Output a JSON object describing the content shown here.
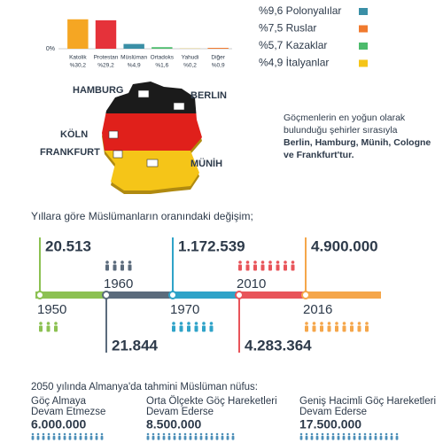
{
  "chart_data": {
    "type": "bar",
    "categories": [
      "Katolik",
      "Protestan",
      "Müslüman",
      "Ortadoks",
      "Yahudi",
      "Diğer"
    ],
    "values": [
      30.2,
      29.2,
      4.9,
      1.6,
      0.2,
      0.9
    ],
    "value_labels": [
      "%30,2",
      "%29,2",
      "%4,9",
      "%1,6",
      "%0,2",
      "%0,9"
    ],
    "colors": [
      "#f5a623",
      "#e5323a",
      "#3a8fa6",
      "#4cbb6c",
      "#f5c518",
      "#f07a2e"
    ],
    "ylim": [
      0,
      50
    ],
    "yticks": [
      {
        "value": 0,
        "label": "0%"
      }
    ]
  },
  "origins": [
    {
      "label": "%9,6 Polonyalılar",
      "color": "#3a8fa6"
    },
    {
      "label": "%7,5 Ruslar",
      "color": "#f07a2e"
    },
    {
      "label": "%5,7 Kazaklar",
      "color": "#4cbb6c"
    },
    {
      "label": "%4,9 İtalyanlar",
      "color": "#f5c518"
    }
  ],
  "map": {
    "cities": [
      "HAMBURG",
      "BERLIN",
      "KÖLN",
      "FRANKFURT",
      "MÜNİH"
    ],
    "note": "Göçmenlerin en yoğun olarak bulunduğu şehirler sırasıyla",
    "note_bold": "Berlin, Hamburg, Münih, Cologne ve Frankfurt'tur."
  },
  "timeline": {
    "title": "Yıllara göre Müslümanların oranındaki değişim;",
    "points": [
      {
        "year": "1950",
        "value": "20.513",
        "color": "#8cc152"
      },
      {
        "year": "1960",
        "value": "21.844",
        "color": "#5b6b7c"
      },
      {
        "year": "1970",
        "value": "1.172.539",
        "color": "#2fa3c8"
      },
      {
        "year": "2010",
        "value": "4.283.364",
        "color": "#e8545a"
      },
      {
        "year": "2016",
        "value": "4.900.000",
        "color": "#f5a64a"
      }
    ]
  },
  "projection": {
    "title": "2050 yılında Almanya'da tahmini Müslüman nüfus:",
    "scenarios": [
      {
        "lines": [
          "Göç Almaya",
          "Devam Etmezse"
        ],
        "value": "6.000.000"
      },
      {
        "lines": [
          "Orta Ölçekte Göç Hareketleri",
          "Devam Ederse"
        ],
        "value": "8.500.000"
      },
      {
        "lines": [
          "Geniş Hacimli Göç Hareketleri",
          "Devam Ederse"
        ],
        "value": "17.500.000"
      }
    ]
  }
}
